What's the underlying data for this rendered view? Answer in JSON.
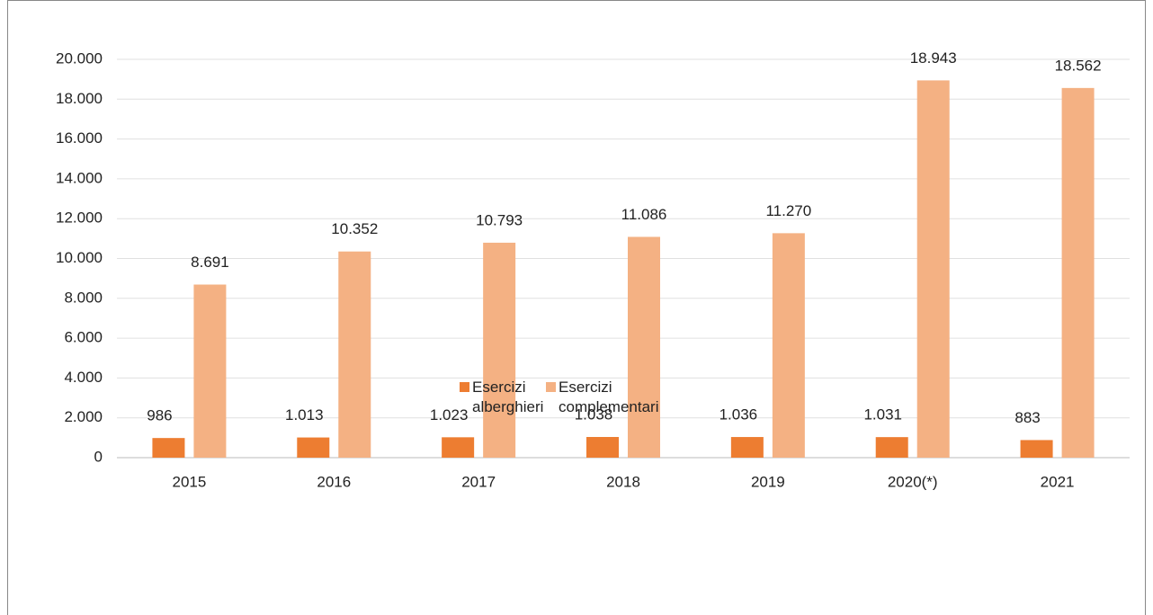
{
  "chart_data": {
    "type": "bar",
    "categories": [
      "2015",
      "2016",
      "2017",
      "2018",
      "2019",
      "2020(*)",
      "2021"
    ],
    "series": [
      {
        "name": "Esercizi alberghieri",
        "color": "#ed7d31",
        "values": [
          986,
          1013,
          1023,
          1038,
          1036,
          1031,
          883
        ],
        "value_labels": [
          "986",
          "1.013",
          "1.023",
          "1.038",
          "1.036",
          "1.031",
          "883"
        ]
      },
      {
        "name": "Esercizi complementari",
        "color": "#f4b183",
        "values": [
          8691,
          10352,
          10793,
          11086,
          11270,
          18943,
          18562
        ],
        "value_labels": [
          "8.691",
          "10.352",
          "10.793",
          "11.086",
          "11.270",
          "18.943",
          "18.562"
        ]
      }
    ],
    "ylim": [
      0,
      20000
    ],
    "yticks": [
      0,
      {
        "value": 2000,
        "label": "2.000"
      },
      {
        "value": 4000,
        "label": "4.000"
      },
      {
        "value": 6000,
        "label": "6.000"
      },
      {
        "value": 8000,
        "label": "8.000"
      },
      {
        "value": 10000,
        "label": "10.000"
      },
      {
        "value": 12000,
        "label": "12.000"
      },
      {
        "value": 14000,
        "label": "14.000"
      },
      {
        "value": 16000,
        "label": "16.000"
      },
      {
        "value": 18000,
        "label": "18.000"
      },
      {
        "value": 20000,
        "label": "20.000"
      }
    ],
    "grid": true,
    "legend": "bottom"
  }
}
